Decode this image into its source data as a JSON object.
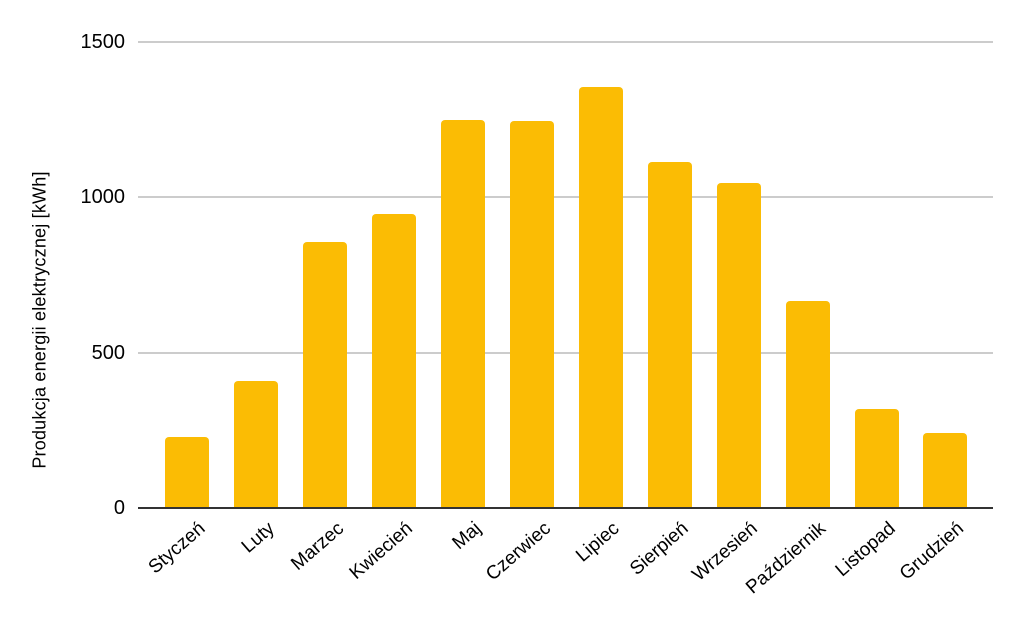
{
  "chart_data": {
    "type": "bar",
    "title": "",
    "categories": [
      "Styczeń",
      "Luty",
      "Marzec",
      "Kwiecień",
      "Maj",
      "Czerwiec",
      "Lipiec",
      "Sierpień",
      "Wrzesień",
      "Październik",
      "Listopad",
      "Grudzień"
    ],
    "values": [
      230,
      410,
      855,
      945,
      1250,
      1245,
      1355,
      1115,
      1045,
      665,
      320,
      240
    ],
    "xlabel": "",
    "ylabel": "Produkcja energii elektrycznej [kWh]",
    "ylim": [
      0,
      1500
    ],
    "yticks": [
      0,
      500,
      1000,
      1500
    ],
    "ytick_labels": [
      "0",
      "500",
      "1000",
      "1500"
    ],
    "grid": true,
    "legend_position": "none",
    "series_name": "Produkcja energii elektrycznej"
  },
  "colors": {
    "bar": "#FBBC04",
    "gridline": "#cccccc",
    "axis_line": "#333333",
    "text": "#000000",
    "background": "#ffffff"
  }
}
